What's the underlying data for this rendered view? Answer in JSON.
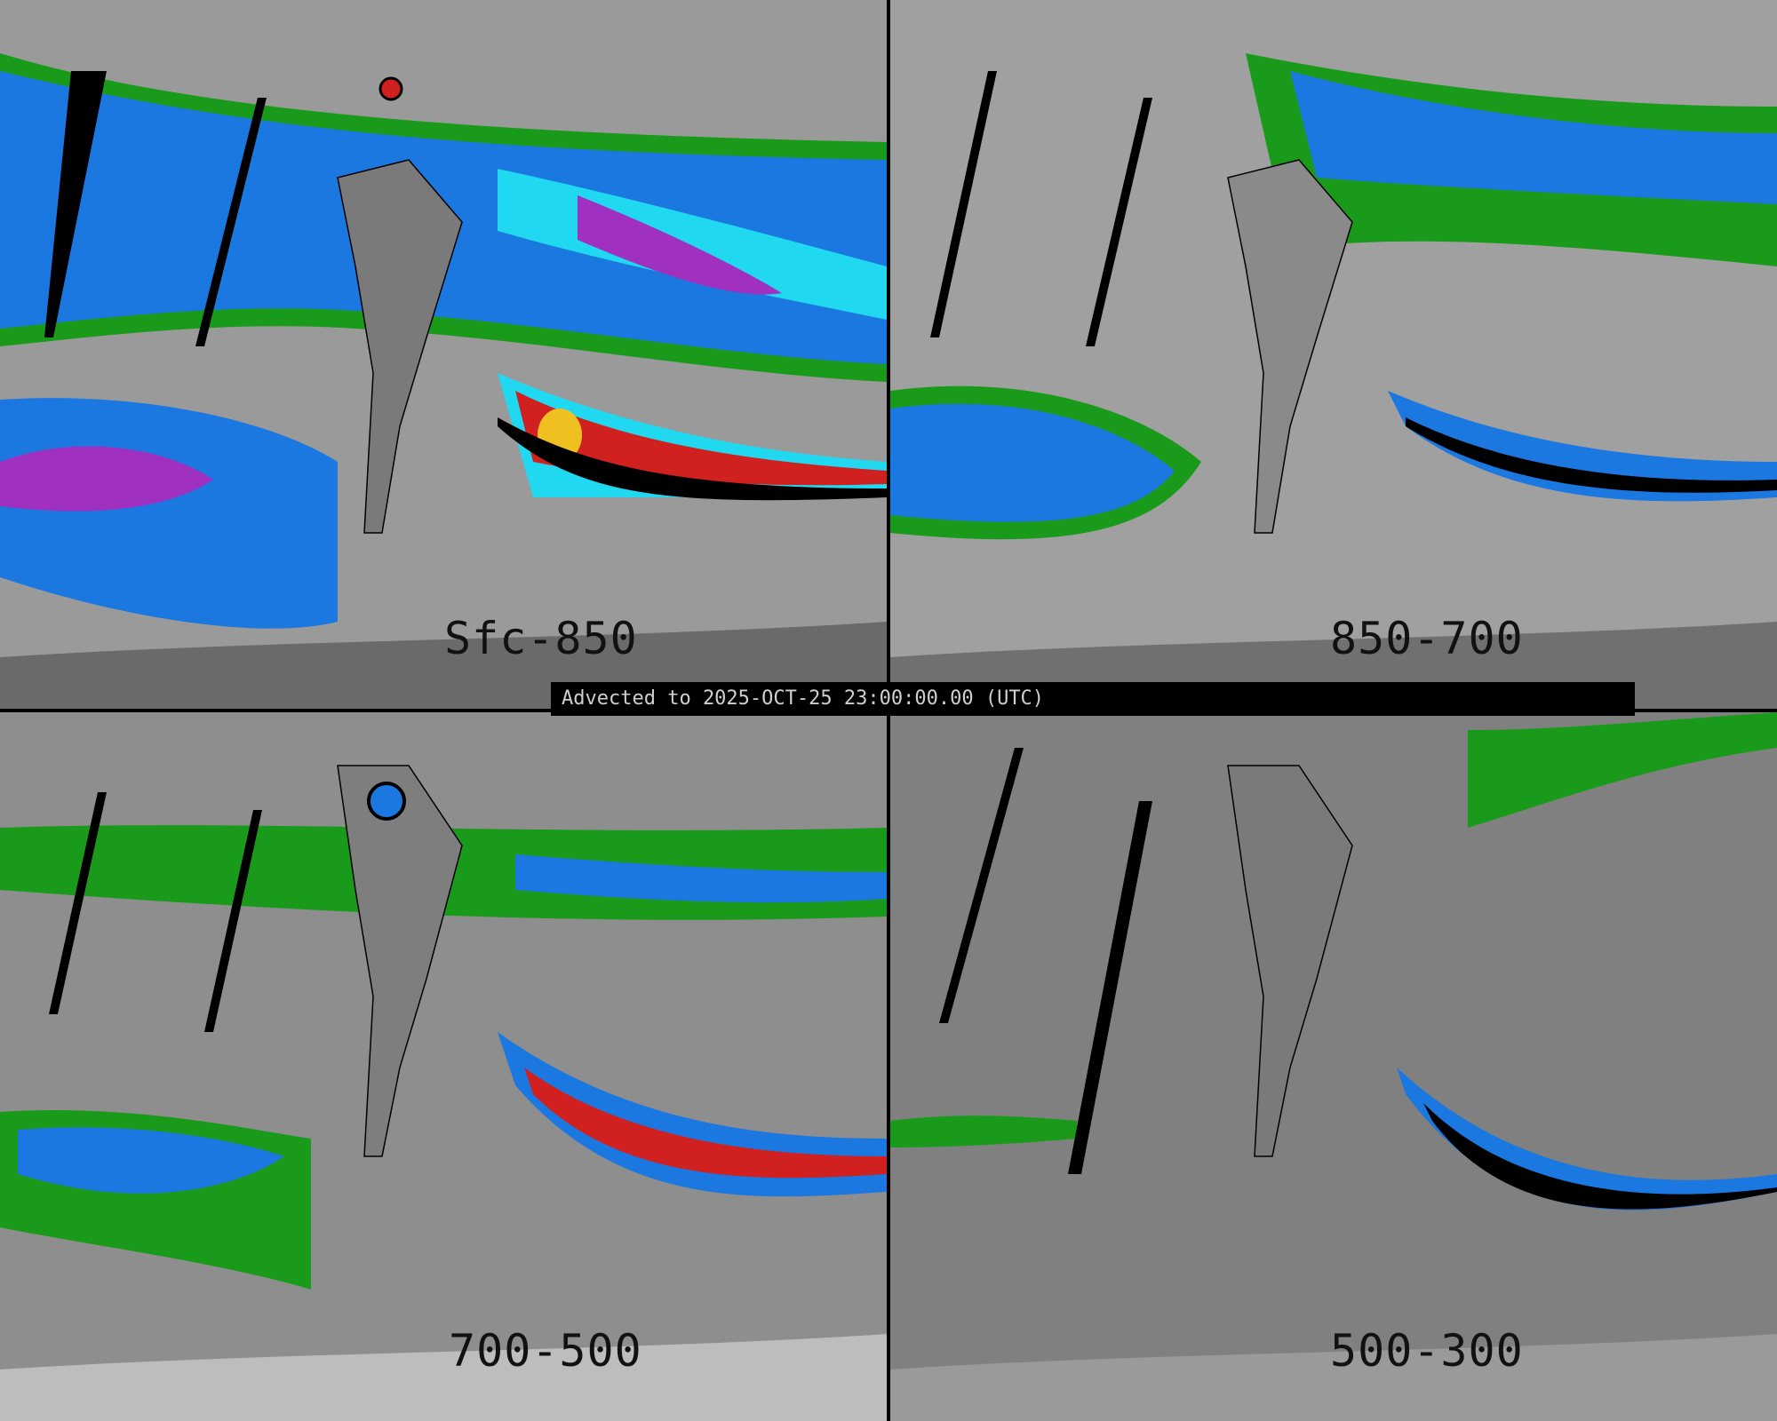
{
  "banner": {
    "text": "Advected to 2025-OCT-25 23:00:00.00 (UTC)"
  },
  "panels": [
    {
      "label": "Sfc-850"
    },
    {
      "label": "850-700"
    },
    {
      "label": "700-500"
    },
    {
      "label": "500-300"
    }
  ],
  "colors": {
    "background_gray": "#8a8a8a",
    "green": "#1a9a1a",
    "blue": "#1a78e0",
    "cyan": "#20d8f0",
    "purple": "#a030c0",
    "red": "#d02020",
    "yellow": "#f0c020"
  }
}
